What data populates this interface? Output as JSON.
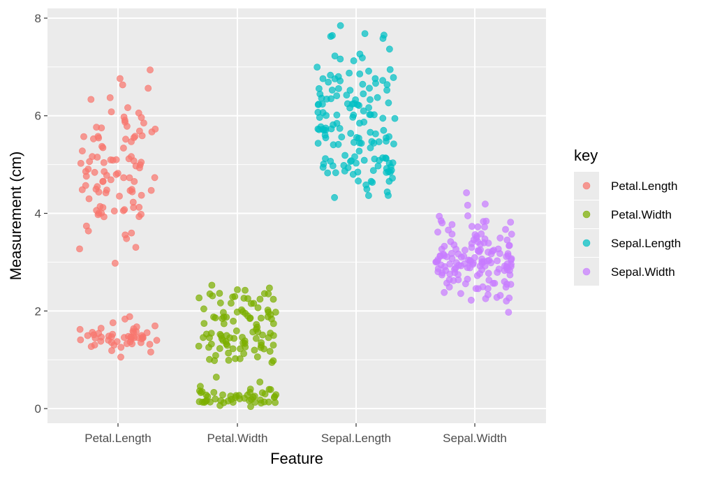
{
  "chart_data": {
    "type": "scatter",
    "title": "",
    "xlabel": "Feature",
    "ylabel": "Measurement (cm)",
    "categories": [
      "Petal.Length",
      "Petal.Width",
      "Sepal.Length",
      "Sepal.Width"
    ],
    "y_ticks": [
      0,
      2,
      4,
      6,
      8
    ],
    "ylim": [
      -0.3,
      8.2
    ],
    "grid": true,
    "jitter": true,
    "legend": {
      "title": "key",
      "placement": "right"
    },
    "series": [
      {
        "name": "Petal.Length",
        "color": "#F8766D",
        "values": [
          1.4,
          1.4,
          1.3,
          1.5,
          1.4,
          1.7,
          1.4,
          1.5,
          1.4,
          1.5,
          1.5,
          1.6,
          1.4,
          1.1,
          1.2,
          1.5,
          1.3,
          1.4,
          1.7,
          1.5,
          1.7,
          1.5,
          1.0,
          1.7,
          1.9,
          1.6,
          1.6,
          1.5,
          1.4,
          1.6,
          1.6,
          1.5,
          1.5,
          1.4,
          1.5,
          1.2,
          1.3,
          1.4,
          1.3,
          1.5,
          1.3,
          1.3,
          1.3,
          1.6,
          1.9,
          1.4,
          1.6,
          1.4,
          1.5,
          1.4,
          4.7,
          4.5,
          4.9,
          4.0,
          4.6,
          4.5,
          4.7,
          3.3,
          4.6,
          3.9,
          3.5,
          4.2,
          4.0,
          4.7,
          3.6,
          4.4,
          4.5,
          4.1,
          4.5,
          3.9,
          4.8,
          4.0,
          4.9,
          4.7,
          4.3,
          4.4,
          4.8,
          5.0,
          4.5,
          3.5,
          3.8,
          3.7,
          3.9,
          5.1,
          4.5,
          4.5,
          4.7,
          4.4,
          4.1,
          4.0,
          4.4,
          4.6,
          4.0,
          3.3,
          4.2,
          4.2,
          4.2,
          4.3,
          3.0,
          4.1,
          6.0,
          5.1,
          5.9,
          5.6,
          5.8,
          6.6,
          4.5,
          6.3,
          5.8,
          6.1,
          5.1,
          5.3,
          5.5,
          5.0,
          5.1,
          5.3,
          5.5,
          6.7,
          6.9,
          5.0,
          5.7,
          4.9,
          6.7,
          4.9,
          5.7,
          6.0,
          4.8,
          4.9,
          5.6,
          5.8,
          6.1,
          6.4,
          5.6,
          5.1,
          5.6,
          6.1,
          5.6,
          5.5,
          4.8,
          5.4,
          5.6,
          5.1,
          5.1,
          5.9,
          5.7,
          5.2,
          5.0,
          5.2,
          5.4,
          5.1
        ]
      },
      {
        "name": "Petal.Width",
        "color": "#7CAE00",
        "values": [
          0.2,
          0.2,
          0.2,
          0.2,
          0.2,
          0.4,
          0.3,
          0.2,
          0.2,
          0.1,
          0.2,
          0.2,
          0.1,
          0.1,
          0.2,
          0.4,
          0.4,
          0.3,
          0.3,
          0.3,
          0.2,
          0.4,
          0.2,
          0.5,
          0.2,
          0.2,
          0.4,
          0.2,
          0.2,
          0.2,
          0.2,
          0.4,
          0.1,
          0.2,
          0.2,
          0.2,
          0.2,
          0.1,
          0.2,
          0.2,
          0.3,
          0.3,
          0.2,
          0.6,
          0.4,
          0.3,
          0.2,
          0.2,
          0.2,
          0.2,
          1.4,
          1.5,
          1.5,
          1.3,
          1.5,
          1.3,
          1.6,
          1.0,
          1.3,
          1.4,
          1.0,
          1.5,
          1.0,
          1.4,
          1.3,
          1.4,
          1.5,
          1.0,
          1.5,
          1.1,
          1.8,
          1.3,
          1.5,
          1.2,
          1.3,
          1.4,
          1.4,
          1.7,
          1.5,
          1.0,
          1.1,
          1.0,
          1.2,
          1.6,
          1.5,
          1.6,
          1.5,
          1.3,
          1.3,
          1.3,
          1.2,
          1.4,
          1.2,
          1.0,
          1.3,
          1.2,
          1.3,
          1.3,
          1.1,
          1.3,
          2.5,
          1.9,
          2.1,
          1.8,
          2.2,
          2.1,
          1.7,
          1.8,
          1.8,
          2.5,
          2.0,
          1.9,
          2.1,
          2.0,
          2.4,
          2.3,
          1.8,
          2.2,
          2.3,
          1.5,
          2.3,
          2.0,
          2.0,
          1.8,
          2.1,
          1.8,
          1.8,
          1.8,
          2.1,
          1.6,
          1.9,
          2.0,
          2.2,
          1.5,
          1.4,
          2.3,
          2.4,
          1.8,
          1.8,
          2.1,
          2.4,
          2.3,
          1.9,
          2.3,
          2.5,
          2.3,
          1.9,
          2.0,
          2.3,
          1.8
        ]
      },
      {
        "name": "Sepal.Length",
        "color": "#00BFC4",
        "values": [
          5.1,
          4.9,
          4.7,
          4.6,
          5.0,
          5.4,
          4.6,
          5.0,
          4.4,
          4.9,
          5.4,
          4.8,
          4.8,
          4.3,
          5.8,
          5.7,
          5.4,
          5.1,
          5.7,
          5.1,
          5.4,
          5.1,
          4.6,
          5.1,
          4.8,
          5.0,
          5.0,
          5.2,
          5.2,
          4.7,
          4.8,
          5.4,
          5.2,
          5.5,
          4.9,
          5.0,
          5.5,
          4.9,
          4.4,
          5.1,
          5.0,
          4.5,
          4.4,
          5.0,
          5.1,
          4.8,
          5.1,
          4.6,
          5.3,
          5.0,
          7.0,
          6.4,
          6.9,
          5.5,
          6.5,
          5.7,
          6.3,
          4.9,
          6.6,
          5.2,
          5.0,
          5.9,
          6.0,
          6.1,
          5.6,
          6.7,
          5.6,
          5.8,
          6.2,
          5.6,
          5.9,
          6.1,
          6.3,
          6.1,
          6.4,
          6.6,
          6.8,
          6.7,
          6.0,
          5.7,
          5.5,
          5.5,
          5.8,
          6.0,
          5.4,
          6.0,
          6.7,
          6.3,
          5.6,
          5.5,
          5.5,
          6.1,
          5.8,
          5.0,
          5.6,
          5.7,
          5.7,
          6.2,
          5.1,
          5.7,
          6.3,
          5.8,
          7.1,
          6.3,
          6.5,
          7.6,
          4.9,
          7.3,
          6.7,
          7.2,
          6.5,
          6.4,
          6.8,
          5.7,
          5.8,
          6.4,
          6.5,
          7.7,
          7.7,
          6.0,
          6.9,
          5.6,
          7.7,
          6.3,
          6.7,
          7.2,
          6.2,
          6.1,
          6.4,
          7.2,
          7.4,
          7.9,
          6.4,
          6.3,
          6.1,
          7.7,
          6.3,
          6.4,
          6.0,
          6.9,
          6.7,
          6.9,
          5.8,
          6.8,
          6.7,
          6.7,
          6.3,
          6.5,
          6.2,
          5.9
        ]
      },
      {
        "name": "Sepal.Width",
        "color": "#C77CFF",
        "values": [
          3.5,
          3.0,
          3.2,
          3.1,
          3.6,
          3.9,
          3.4,
          3.4,
          2.9,
          3.1,
          3.7,
          3.4,
          3.0,
          3.0,
          4.0,
          4.4,
          3.9,
          3.5,
          3.8,
          3.8,
          3.4,
          3.7,
          3.6,
          3.3,
          3.4,
          3.0,
          3.4,
          3.5,
          3.4,
          3.2,
          3.1,
          3.4,
          4.1,
          4.2,
          3.1,
          3.2,
          3.5,
          3.6,
          3.0,
          3.4,
          3.5,
          2.3,
          3.2,
          3.5,
          3.8,
          3.0,
          3.8,
          3.2,
          3.7,
          3.3,
          3.2,
          3.2,
          3.1,
          2.3,
          2.8,
          2.8,
          3.3,
          2.4,
          2.9,
          2.7,
          2.0,
          3.0,
          2.2,
          2.9,
          2.9,
          3.1,
          3.0,
          2.7,
          2.2,
          2.5,
          3.2,
          2.8,
          2.5,
          2.8,
          2.9,
          3.0,
          2.8,
          3.0,
          2.9,
          2.6,
          2.4,
          2.4,
          2.7,
          2.7,
          3.0,
          3.4,
          3.1,
          2.3,
          3.0,
          2.5,
          2.6,
          3.0,
          2.6,
          2.3,
          2.7,
          3.0,
          2.9,
          2.9,
          2.5,
          2.8,
          3.3,
          2.7,
          3.0,
          2.9,
          3.0,
          3.0,
          2.5,
          2.9,
          2.5,
          3.6,
          3.2,
          2.7,
          3.0,
          2.5,
          2.8,
          3.2,
          3.0,
          3.8,
          2.6,
          2.2,
          3.2,
          2.8,
          2.8,
          2.7,
          3.3,
          3.2,
          2.8,
          3.0,
          2.8,
          3.0,
          2.8,
          3.8,
          2.8,
          2.8,
          2.6,
          3.0,
          3.4,
          3.1,
          3.0,
          3.1,
          3.1,
          3.1,
          2.7,
          3.2,
          3.3,
          3.0,
          2.5,
          3.0,
          3.4,
          3.0
        ]
      }
    ]
  }
}
